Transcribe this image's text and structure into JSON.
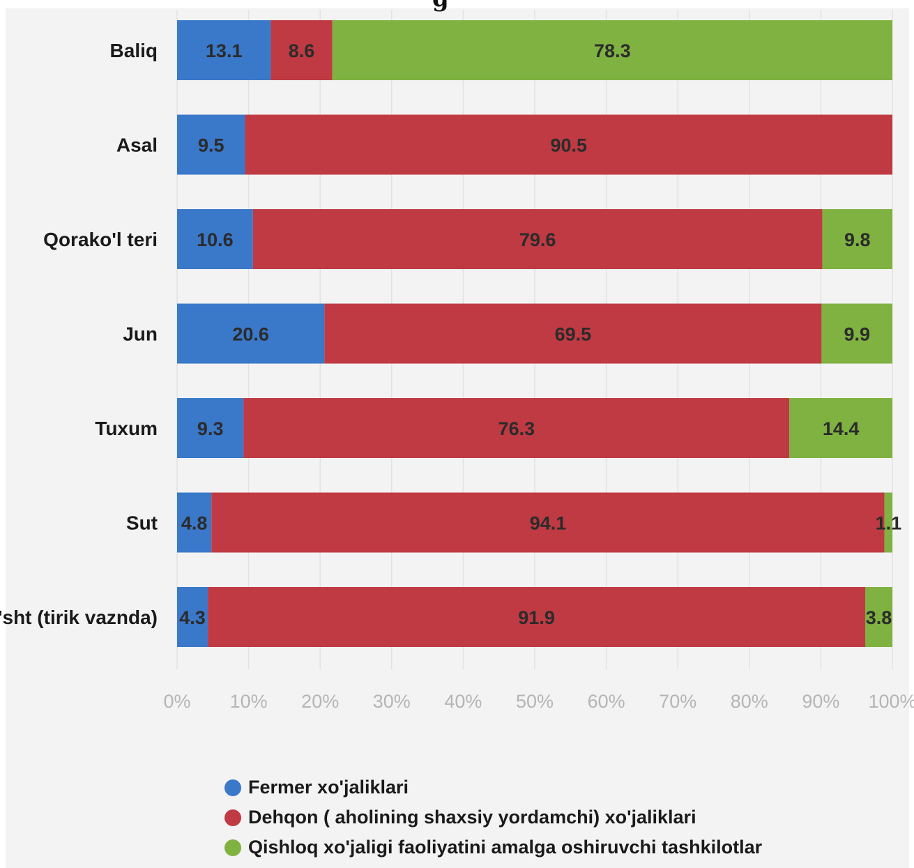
{
  "title_fragment": "g",
  "colors": {
    "background": "#f3f3f3",
    "grid": "#e2e2e2"
  },
  "chart_data": {
    "type": "bar",
    "orientation": "horizontal",
    "stacked": true,
    "percent": true,
    "categories": [
      "Baliq",
      "Asal",
      "Qorako'l teri",
      "Jun",
      "Tuxum",
      "Sut",
      "Go'sht (tirik vaznda)"
    ],
    "series": [
      {
        "name": "Fermer xo'jaliklari",
        "color": "#3a78c9",
        "values": [
          13.1,
          9.5,
          10.6,
          20.6,
          9.3,
          4.8,
          4.3
        ]
      },
      {
        "name": "Dehqon ( aholining shaxsiy yordamchi) xo'jaliklari",
        "color": "#bf3a43",
        "values": [
          8.6,
          90.5,
          79.6,
          69.5,
          76.3,
          94.1,
          91.9
        ]
      },
      {
        "name": "Qishloq xo'jaligi faoliyatini amalga oshiruvchi tashkilotlar",
        "color": "#7fb241",
        "values": [
          78.3,
          0,
          9.8,
          9.9,
          14.4,
          1.1,
          3.8
        ]
      }
    ],
    "xlim": [
      0,
      100
    ],
    "xticks": [
      "0%",
      "10%",
      "20%",
      "30%",
      "40%",
      "50%",
      "60%",
      "70%",
      "80%",
      "90%",
      "100%"
    ],
    "grid": true,
    "legend_position": "bottom"
  }
}
